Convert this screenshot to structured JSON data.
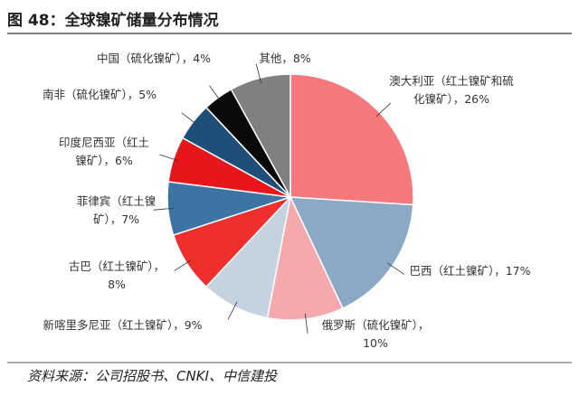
{
  "chart_data": {
    "type": "pie",
    "title": "图 48：全球镍矿储量分布情况",
    "source": "资料来源：公司招股书、CNKI、中信建投",
    "label_separator": "，",
    "categories": [
      "澳大利亚（红土镍矿和硫化镍矿）",
      "巴西（红土镍矿）",
      "俄罗斯（硫化镍矿）",
      "新喀里多尼亚（红土镍矿）",
      "古巴（红土镍矿）",
      "菲律宾（红土镍矿）",
      "印度尼西亚（红土镍矿）",
      "南非（硫化镍矿）",
      "中国（硫化镍矿）",
      "其他"
    ],
    "values": [
      26,
      17,
      10,
      9,
      8,
      7,
      6,
      5,
      4,
      8
    ],
    "value_labels": [
      "26%",
      "17%",
      "10%",
      "9%",
      "8%",
      "7%",
      "6%",
      "5%",
      "4%",
      "8%"
    ],
    "colors": [
      "#f4787c",
      "#8ba8c4",
      "#f6a9ad",
      "#c5d3e0",
      "#ef2e2e",
      "#3e74a3",
      "#e8151b",
      "#1f4e79",
      "#0a0a0a",
      "#808080"
    ]
  }
}
